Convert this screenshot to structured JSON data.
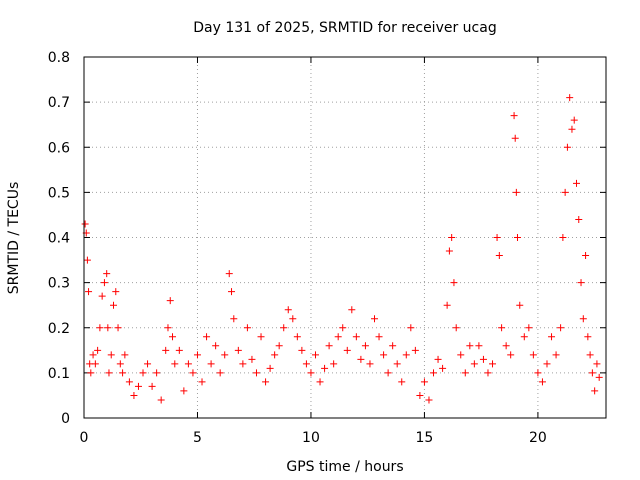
{
  "chart_data": {
    "type": "scatter",
    "title": "Day 131 of 2025, SRMTID for receiver ucag",
    "xlabel": "GPS time / hours",
    "ylabel": "SRMTID / TECUs",
    "xlim": [
      0,
      23
    ],
    "ylim": [
      0,
      0.8
    ],
    "x_ticks": [
      0,
      5,
      10,
      15,
      20
    ],
    "y_ticks": [
      0,
      0.1,
      0.2,
      0.3,
      0.4,
      0.5,
      0.6,
      0.7,
      0.8
    ],
    "x_tick_labels": [
      "0",
      "5",
      "10",
      "15",
      "20"
    ],
    "y_tick_labels": [
      "0",
      "0.1",
      "0.2",
      "0.3",
      "0.4",
      "0.5",
      "0.6",
      "0.7",
      "0.8"
    ],
    "grid": true,
    "marker": "+",
    "series_color": "#ff0000",
    "series": [
      {
        "name": "SRMTID",
        "points": [
          [
            0.05,
            0.43
          ],
          [
            0.1,
            0.41
          ],
          [
            0.15,
            0.35
          ],
          [
            0.2,
            0.28
          ],
          [
            0.25,
            0.12
          ],
          [
            0.3,
            0.1
          ],
          [
            0.4,
            0.14
          ],
          [
            0.5,
            0.12
          ],
          [
            0.6,
            0.15
          ],
          [
            0.7,
            0.2
          ],
          [
            0.8,
            0.27
          ],
          [
            0.9,
            0.3
          ],
          [
            1.0,
            0.32
          ],
          [
            1.05,
            0.2
          ],
          [
            1.1,
            0.1
          ],
          [
            1.2,
            0.14
          ],
          [
            1.3,
            0.25
          ],
          [
            1.4,
            0.28
          ],
          [
            1.5,
            0.2
          ],
          [
            1.6,
            0.12
          ],
          [
            1.7,
            0.1
          ],
          [
            1.8,
            0.14
          ],
          [
            2.0,
            0.08
          ],
          [
            2.2,
            0.05
          ],
          [
            2.4,
            0.07
          ],
          [
            2.6,
            0.1
          ],
          [
            2.8,
            0.12
          ],
          [
            3.0,
            0.07
          ],
          [
            3.2,
            0.1
          ],
          [
            3.4,
            0.04
          ],
          [
            3.6,
            0.15
          ],
          [
            3.7,
            0.2
          ],
          [
            3.8,
            0.26
          ],
          [
            3.9,
            0.18
          ],
          [
            4.0,
            0.12
          ],
          [
            4.2,
            0.15
          ],
          [
            4.4,
            0.06
          ],
          [
            4.6,
            0.12
          ],
          [
            4.8,
            0.1
          ],
          [
            5.0,
            0.14
          ],
          [
            5.2,
            0.08
          ],
          [
            5.4,
            0.18
          ],
          [
            5.6,
            0.12
          ],
          [
            5.8,
            0.16
          ],
          [
            6.0,
            0.1
          ],
          [
            6.2,
            0.14
          ],
          [
            6.4,
            0.32
          ],
          [
            6.5,
            0.28
          ],
          [
            6.6,
            0.22
          ],
          [
            6.8,
            0.15
          ],
          [
            7.0,
            0.12
          ],
          [
            7.2,
            0.2
          ],
          [
            7.4,
            0.13
          ],
          [
            7.6,
            0.1
          ],
          [
            7.8,
            0.18
          ],
          [
            8.0,
            0.08
          ],
          [
            8.2,
            0.11
          ],
          [
            8.4,
            0.14
          ],
          [
            8.6,
            0.16
          ],
          [
            8.8,
            0.2
          ],
          [
            9.0,
            0.24
          ],
          [
            9.2,
            0.22
          ],
          [
            9.4,
            0.18
          ],
          [
            9.6,
            0.15
          ],
          [
            9.8,
            0.12
          ],
          [
            10.0,
            0.1
          ],
          [
            10.2,
            0.14
          ],
          [
            10.4,
            0.08
          ],
          [
            10.6,
            0.11
          ],
          [
            10.8,
            0.16
          ],
          [
            11.0,
            0.12
          ],
          [
            11.2,
            0.18
          ],
          [
            11.4,
            0.2
          ],
          [
            11.6,
            0.15
          ],
          [
            11.8,
            0.24
          ],
          [
            12.0,
            0.18
          ],
          [
            12.2,
            0.13
          ],
          [
            12.4,
            0.16
          ],
          [
            12.6,
            0.12
          ],
          [
            12.8,
            0.22
          ],
          [
            13.0,
            0.18
          ],
          [
            13.2,
            0.14
          ],
          [
            13.4,
            0.1
          ],
          [
            13.6,
            0.16
          ],
          [
            13.8,
            0.12
          ],
          [
            14.0,
            0.08
          ],
          [
            14.2,
            0.14
          ],
          [
            14.4,
            0.2
          ],
          [
            14.6,
            0.15
          ],
          [
            14.8,
            0.05
          ],
          [
            15.0,
            0.08
          ],
          [
            15.2,
            0.04
          ],
          [
            15.4,
            0.1
          ],
          [
            15.6,
            0.13
          ],
          [
            15.8,
            0.11
          ],
          [
            16.0,
            0.25
          ],
          [
            16.1,
            0.37
          ],
          [
            16.2,
            0.4
          ],
          [
            16.3,
            0.3
          ],
          [
            16.4,
            0.2
          ],
          [
            16.6,
            0.14
          ],
          [
            16.8,
            0.1
          ],
          [
            17.0,
            0.16
          ],
          [
            17.2,
            0.12
          ],
          [
            17.4,
            0.16
          ],
          [
            17.6,
            0.13
          ],
          [
            17.8,
            0.1
          ],
          [
            18.0,
            0.12
          ],
          [
            18.2,
            0.4
          ],
          [
            18.3,
            0.36
          ],
          [
            18.4,
            0.2
          ],
          [
            18.6,
            0.16
          ],
          [
            18.8,
            0.14
          ],
          [
            18.95,
            0.67
          ],
          [
            19.0,
            0.62
          ],
          [
            19.05,
            0.5
          ],
          [
            19.1,
            0.4
          ],
          [
            19.2,
            0.25
          ],
          [
            19.4,
            0.18
          ],
          [
            19.6,
            0.2
          ],
          [
            19.8,
            0.14
          ],
          [
            20.0,
            0.1
          ],
          [
            20.2,
            0.08
          ],
          [
            20.4,
            0.12
          ],
          [
            20.6,
            0.18
          ],
          [
            20.8,
            0.14
          ],
          [
            21.0,
            0.2
          ],
          [
            21.1,
            0.4
          ],
          [
            21.2,
            0.5
          ],
          [
            21.3,
            0.6
          ],
          [
            21.4,
            0.71
          ],
          [
            21.5,
            0.64
          ],
          [
            21.6,
            0.66
          ],
          [
            21.7,
            0.52
          ],
          [
            21.8,
            0.44
          ],
          [
            21.9,
            0.3
          ],
          [
            22.0,
            0.22
          ],
          [
            22.1,
            0.36
          ],
          [
            22.2,
            0.18
          ],
          [
            22.3,
            0.14
          ],
          [
            22.4,
            0.1
          ],
          [
            22.5,
            0.06
          ],
          [
            22.6,
            0.12
          ],
          [
            22.7,
            0.09
          ]
        ]
      }
    ]
  }
}
